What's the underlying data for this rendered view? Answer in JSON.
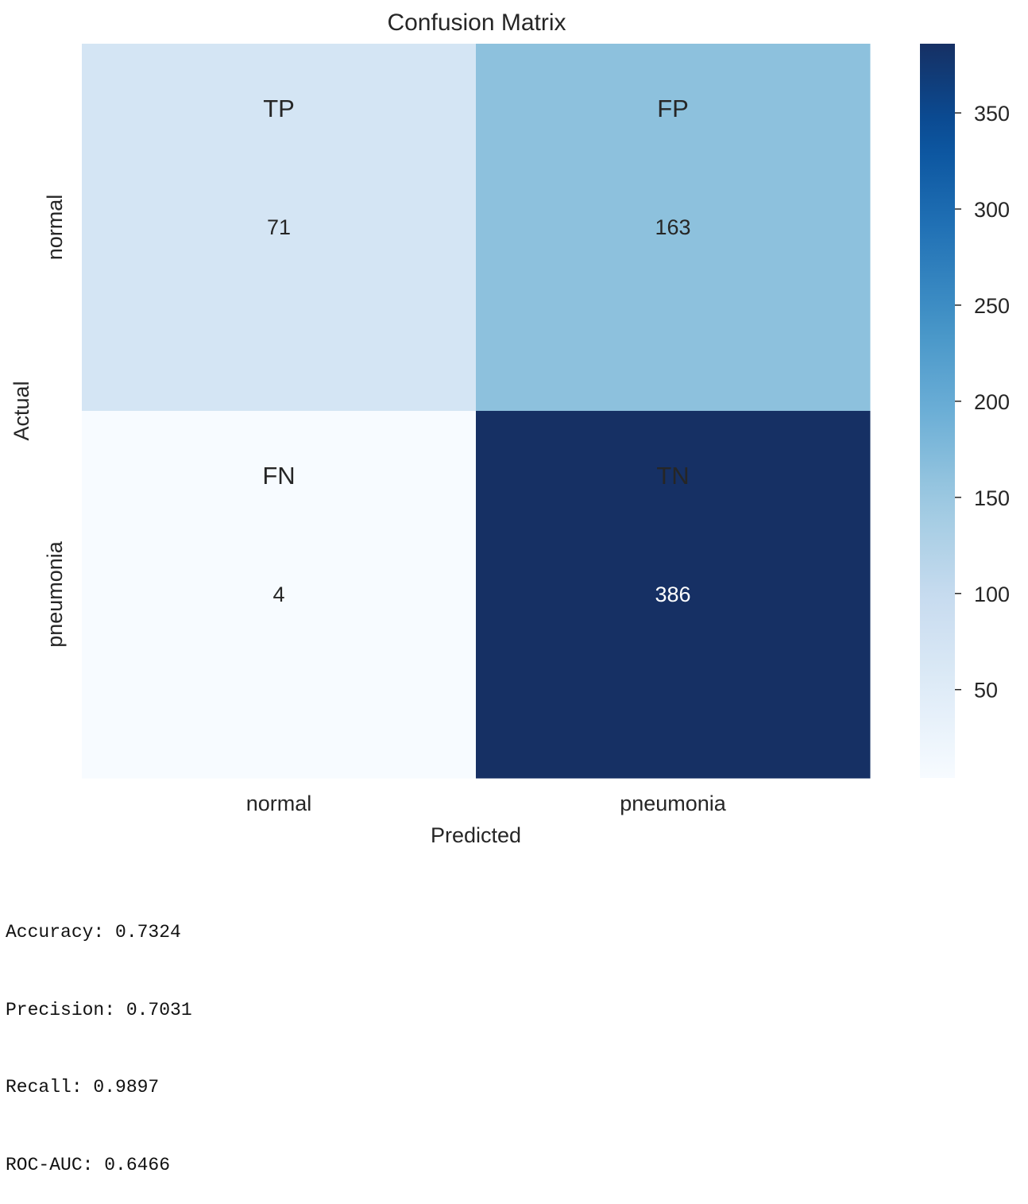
{
  "chart_data": {
    "type": "heatmap",
    "title": "Confusion Matrix",
    "xlabel": "Predicted",
    "ylabel": "Actual",
    "x_categories": [
      "normal",
      "pneumonia"
    ],
    "y_categories": [
      "normal",
      "pneumonia"
    ],
    "values": [
      [
        71,
        163
      ],
      [
        4,
        386
      ]
    ],
    "cell_labels": [
      [
        "TP",
        "FP"
      ],
      [
        "FN",
        "TN"
      ]
    ],
    "colormap": "Blues",
    "colorbar": {
      "range": [
        4,
        386
      ],
      "ticks": [
        50,
        100,
        150,
        200,
        250,
        300,
        350
      ]
    },
    "grid": false
  },
  "metrics": [
    "Accuracy: 0.7324",
    "Precision: 0.7031",
    "Recall: 0.9897",
    "ROC-AUC: 0.6466"
  ]
}
